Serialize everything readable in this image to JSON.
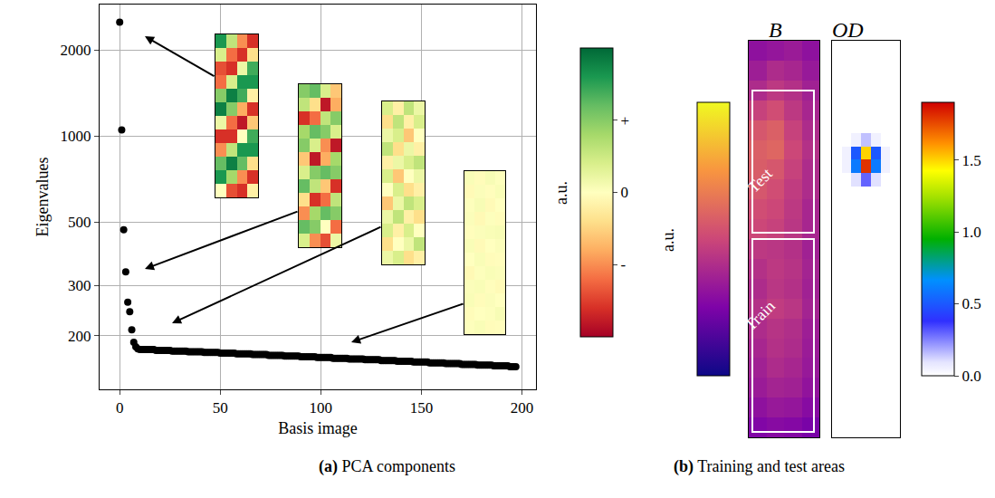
{
  "chart_data": [
    {
      "type": "scatter",
      "caption": "(a) PCA components",
      "x_label": "Basis image",
      "y_label": "Eigenvalues",
      "log": "y",
      "grid": true,
      "color": "#000000",
      "marker": "circle",
      "xlim": [
        -10,
        207
      ],
      "ylim": [
        130,
        2880
      ],
      "xticks": [
        0,
        50,
        100,
        150,
        200
      ],
      "yticks": [
        200,
        300,
        500,
        1000,
        2000
      ],
      "x": [
        0,
        1,
        2,
        3,
        4,
        5,
        6,
        7,
        8,
        9,
        10,
        11,
        12,
        13,
        14,
        15,
        16,
        17,
        18,
        19,
        20,
        21,
        22,
        23,
        24,
        25,
        26,
        27,
        28,
        29,
        30,
        31,
        32,
        33,
        34,
        35,
        36,
        37,
        38,
        39,
        40,
        41,
        42,
        43,
        44,
        45,
        46,
        47,
        48,
        49,
        50,
        51,
        52,
        53,
        54,
        55,
        56,
        57,
        58,
        59,
        60,
        61,
        62,
        63,
        64,
        65,
        66,
        67,
        68,
        69,
        70,
        71,
        72,
        73,
        74,
        75,
        76,
        77,
        78,
        79,
        80,
        81,
        82,
        83,
        84,
        85,
        86,
        87,
        88,
        89,
        90,
        91,
        92,
        93,
        94,
        95,
        96,
        97,
        98,
        99,
        100,
        101,
        102,
        103,
        104,
        105,
        106,
        107,
        108,
        109,
        110,
        111,
        112,
        113,
        114,
        115,
        116,
        117,
        118,
        119,
        120,
        121,
        122,
        123,
        124,
        125,
        126,
        127,
        128,
        129,
        130,
        131,
        132,
        133,
        134,
        135,
        136,
        137,
        138,
        139,
        140,
        141,
        142,
        143,
        144,
        145,
        146,
        147,
        148,
        149,
        150,
        151,
        152,
        153,
        154,
        155,
        156,
        157,
        158,
        159,
        160,
        161,
        162,
        163,
        164,
        165,
        166,
        167,
        168,
        169,
        170,
        171,
        172,
        173,
        174,
        175,
        176,
        177,
        178,
        179,
        180,
        181,
        182,
        183,
        184,
        185,
        186,
        187,
        188,
        189,
        190,
        191,
        192,
        193,
        194,
        195,
        196,
        197
      ],
      "values": [
        2500,
        1050,
        470,
        335,
        262,
        243,
        210,
        190,
        183,
        180,
        179,
        179,
        179,
        179,
        179,
        179,
        179,
        179,
        178,
        178,
        178,
        178,
        178,
        178,
        178,
        178,
        177,
        177,
        177,
        177,
        177,
        177,
        177,
        177,
        176,
        176,
        176,
        176,
        176,
        176,
        176,
        176,
        175,
        175,
        175,
        175,
        175,
        175,
        175,
        175,
        174,
        174,
        174,
        174,
        174,
        174,
        174,
        174,
        173,
        173,
        173,
        173,
        173,
        173,
        173,
        173,
        172,
        172,
        172,
        172,
        172,
        172,
        172,
        172,
        171,
        171,
        171,
        171,
        171,
        171,
        171,
        171,
        170,
        170,
        170,
        170,
        170,
        170,
        170,
        170,
        169,
        169,
        169,
        169,
        169,
        169,
        169,
        169,
        168,
        168,
        168,
        168,
        168,
        168,
        168,
        168,
        167,
        167,
        167,
        167,
        167,
        167,
        167,
        167,
        166,
        166,
        166,
        166,
        166,
        166,
        166,
        166,
        165,
        165,
        165,
        165,
        165,
        165,
        165,
        165,
        164,
        164,
        164,
        164,
        164,
        164,
        164,
        164,
        163,
        163,
        163,
        163,
        163,
        163,
        163,
        163,
        162,
        162,
        162,
        162,
        162,
        162,
        162,
        162,
        161,
        161,
        161,
        161,
        161,
        161,
        161,
        161,
        160,
        160,
        160,
        160,
        160,
        160,
        160,
        160,
        159,
        159,
        159,
        159,
        159,
        159,
        159,
        159,
        158,
        158,
        158,
        158,
        158,
        158,
        158,
        158,
        157,
        157,
        157,
        157,
        157,
        157,
        157,
        157,
        156,
        156,
        156,
        156
      ]
    },
    {
      "type": "heatmap",
      "colorbar_label": "a.u.",
      "colorbar_range": [
        -1,
        1
      ],
      "colorbar_ticks": [
        {
          "value": 0.5,
          "label": "+"
        },
        {
          "value": 0,
          "label": "0"
        },
        {
          "value": -0.5,
          "label": "-"
        }
      ],
      "images": [
        [
          [
            0.8,
            0.3,
            -0.5,
            -0.8
          ],
          [
            0.2,
            -0.6,
            -0.8,
            -0.2
          ],
          [
            -0.7,
            -0.8,
            0.1,
            0.7
          ],
          [
            -0.6,
            0.2,
            0.8,
            0.8
          ],
          [
            0.5,
            0.9,
            0.7,
            -0.1
          ],
          [
            0.9,
            0.5,
            -0.4,
            -0.8
          ],
          [
            0.1,
            -0.6,
            -0.9,
            -0.3
          ],
          [
            -0.8,
            -0.8,
            0.0,
            0.7
          ],
          [
            -0.5,
            0.3,
            0.8,
            0.8
          ],
          [
            0.6,
            0.9,
            0.6,
            -0.2
          ],
          [
            0.8,
            0.4,
            -0.5,
            -0.8
          ],
          [
            0.0,
            -0.7,
            -0.8,
            -0.1
          ]
        ],
        [
          [
            0.5,
            0.6,
            0.2,
            -0.3
          ],
          [
            0.3,
            -0.2,
            -0.9,
            -0.4
          ],
          [
            -0.8,
            -0.6,
            0.3,
            0.5
          ],
          [
            0.4,
            0.6,
            0.5,
            0.2
          ],
          [
            0.5,
            0.2,
            -0.5,
            -0.9
          ],
          [
            -0.3,
            -0.9,
            -0.4,
            0.4
          ],
          [
            0.2,
            0.5,
            0.6,
            0.5
          ],
          [
            0.6,
            0.3,
            -0.3,
            -0.8
          ],
          [
            -0.2,
            -0.8,
            -0.6,
            0.3
          ],
          [
            -0.5,
            0.4,
            0.6,
            0.5
          ],
          [
            0.6,
            0.5,
            0.0,
            -0.6
          ],
          [
            0.2,
            -0.5,
            -0.7,
            0.1
          ]
        ],
        [
          [
            0.2,
            -0.1,
            0.3,
            0.1
          ],
          [
            -0.2,
            0.3,
            -0.1,
            0.2
          ],
          [
            0.1,
            0.2,
            -0.3,
            0.0
          ],
          [
            0.3,
            -0.2,
            0.1,
            -0.1
          ],
          [
            -0.1,
            0.1,
            0.2,
            0.3
          ],
          [
            0.2,
            -0.3,
            0.0,
            0.1
          ],
          [
            0.0,
            0.2,
            -0.2,
            -0.1
          ],
          [
            -0.3,
            0.1,
            0.3,
            0.2
          ],
          [
            0.1,
            0.3,
            -0.1,
            -0.2
          ],
          [
            0.2,
            -0.1,
            0.2,
            0.0
          ],
          [
            -0.2,
            0.0,
            0.1,
            0.3
          ],
          [
            0.1,
            0.2,
            -0.2,
            -0.1
          ]
        ],
        [
          [
            0.03,
            -0.02,
            0.04,
            0.01
          ],
          [
            -0.03,
            0.02,
            -0.01,
            0.03
          ],
          [
            0.01,
            0.04,
            -0.03,
            0.0
          ],
          [
            0.02,
            -0.04,
            0.01,
            -0.02
          ],
          [
            -0.01,
            0.02,
            0.03,
            0.04
          ],
          [
            0.03,
            -0.03,
            0.0,
            0.02
          ],
          [
            0.0,
            0.03,
            -0.02,
            -0.01
          ],
          [
            -0.04,
            0.01,
            0.03,
            0.02
          ],
          [
            0.02,
            0.03,
            -0.01,
            -0.03
          ],
          [
            0.03,
            -0.02,
            0.02,
            0.0
          ],
          [
            -0.02,
            0.0,
            0.01,
            0.04
          ],
          [
            0.01,
            0.03,
            -0.02,
            -0.01
          ]
        ]
      ]
    },
    {
      "type": "heatmap",
      "title": "B",
      "caption": "(b) Training and test areas",
      "colorbar_label": "a.u.",
      "colorbar_range": [
        0,
        1
      ],
      "annotations": [
        "Test",
        "Train"
      ],
      "cells": [
        [
          0.3,
          0.32,
          0.34,
          0.3
        ],
        [
          0.35,
          0.4,
          0.38,
          0.33
        ],
        [
          0.4,
          0.45,
          0.42,
          0.36
        ],
        [
          0.48,
          0.52,
          0.45,
          0.38
        ],
        [
          0.55,
          0.58,
          0.48,
          0.4
        ],
        [
          0.58,
          0.6,
          0.5,
          0.42
        ],
        [
          0.57,
          0.55,
          0.48,
          0.4
        ],
        [
          0.55,
          0.52,
          0.46,
          0.4
        ],
        [
          0.52,
          0.5,
          0.45,
          0.38
        ],
        [
          0.5,
          0.48,
          0.44,
          0.38
        ],
        [
          0.45,
          0.44,
          0.42,
          0.36
        ],
        [
          0.42,
          0.45,
          0.43,
          0.37
        ],
        [
          0.4,
          0.44,
          0.42,
          0.36
        ],
        [
          0.42,
          0.46,
          0.44,
          0.37
        ],
        [
          0.4,
          0.43,
          0.41,
          0.35
        ],
        [
          0.38,
          0.42,
          0.4,
          0.34
        ],
        [
          0.36,
          0.4,
          0.38,
          0.33
        ],
        [
          0.34,
          0.37,
          0.36,
          0.31
        ],
        [
          0.3,
          0.33,
          0.32,
          0.28
        ],
        [
          0.26,
          0.28,
          0.27,
          0.24
        ]
      ]
    },
    {
      "type": "heatmap",
      "title": "OD",
      "colorbar_range": [
        0,
        1.9
      ],
      "colorbar_ticks": [
        {
          "value": 0,
          "label": "0.0"
        },
        {
          "value": 0.5,
          "label": "0.5"
        },
        {
          "value": 1,
          "label": "1.0"
        },
        {
          "value": 1.5,
          "label": "1.5"
        }
      ],
      "cells": [
        [
          0,
          0,
          0,
          0,
          0,
          0,
          0
        ],
        [
          0,
          0,
          0,
          0,
          0,
          0,
          0
        ],
        [
          0,
          0,
          0,
          0,
          0,
          0,
          0
        ],
        [
          0,
          0,
          0,
          0,
          0,
          0,
          0
        ],
        [
          0,
          0,
          0,
          0,
          0,
          0,
          0
        ],
        [
          0,
          0,
          0,
          0,
          0,
          0,
          0
        ],
        [
          0,
          0,
          0,
          0,
          0,
          0,
          0
        ],
        [
          0,
          0,
          0.05,
          0.15,
          0.05,
          0,
          0
        ],
        [
          0,
          0.05,
          0.5,
          1.5,
          0.5,
          0.05,
          0
        ],
        [
          0,
          0.05,
          0.6,
          1.8,
          0.6,
          0.05,
          0
        ],
        [
          0,
          0,
          0.1,
          0.3,
          0.1,
          0,
          0
        ],
        [
          0,
          0,
          0,
          0,
          0,
          0,
          0
        ],
        [
          0,
          0,
          0,
          0,
          0,
          0,
          0
        ],
        [
          0,
          0,
          0,
          0,
          0,
          0,
          0
        ],
        [
          0,
          0,
          0,
          0,
          0,
          0,
          0
        ],
        [
          0,
          0,
          0,
          0,
          0,
          0,
          0
        ],
        [
          0,
          0,
          0,
          0,
          0,
          0,
          0
        ],
        [
          0,
          0,
          0,
          0,
          0,
          0,
          0
        ],
        [
          0,
          0,
          0,
          0,
          0,
          0,
          0
        ],
        [
          0,
          0,
          0,
          0,
          0,
          0,
          0
        ],
        [
          0,
          0,
          0,
          0,
          0,
          0,
          0
        ],
        [
          0,
          0,
          0,
          0,
          0,
          0,
          0
        ],
        [
          0,
          0,
          0,
          0,
          0,
          0,
          0
        ],
        [
          0,
          0,
          0,
          0,
          0,
          0,
          0
        ],
        [
          0,
          0,
          0,
          0,
          0,
          0,
          0
        ],
        [
          0,
          0,
          0,
          0,
          0,
          0,
          0
        ],
        [
          0,
          0,
          0,
          0,
          0,
          0,
          0
        ],
        [
          0,
          0,
          0,
          0,
          0,
          0,
          0
        ],
        [
          0,
          0,
          0,
          0,
          0,
          0,
          0
        ],
        [
          0,
          0,
          0,
          0,
          0,
          0,
          0
        ]
      ]
    }
  ]
}
